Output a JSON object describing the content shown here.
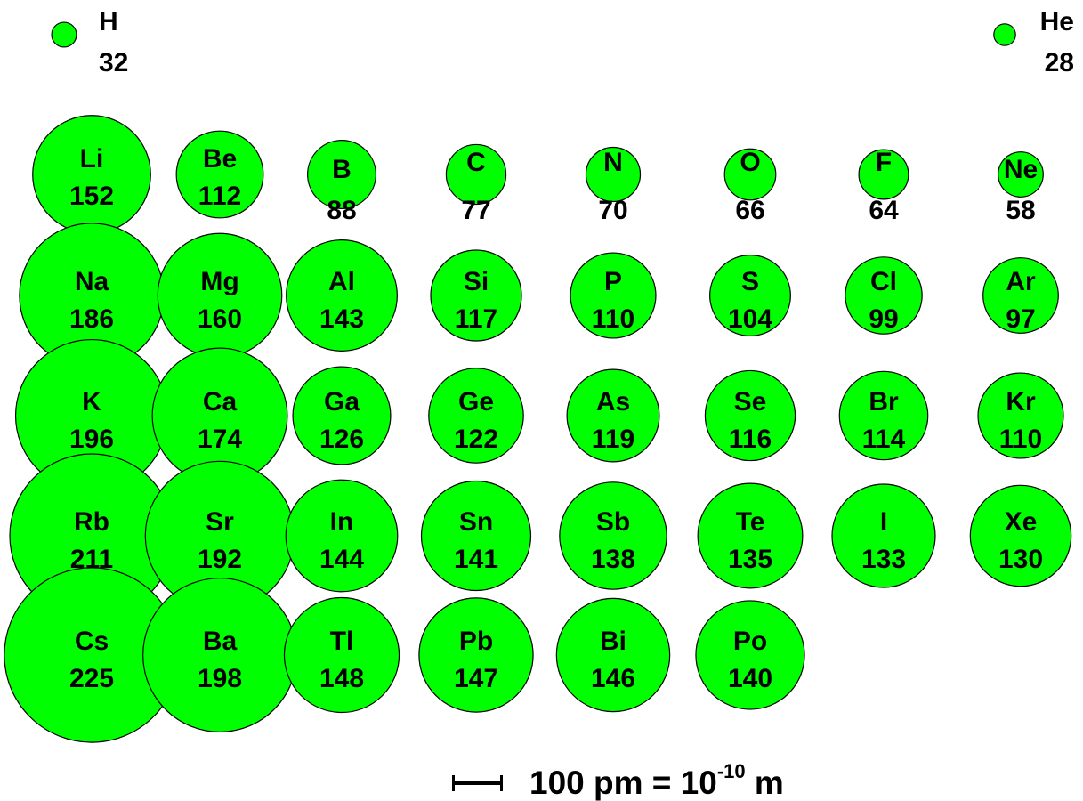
{
  "style": {
    "circle_fill": "#00ff00",
    "circle_stroke": "#000000",
    "text_color": "#000000"
  },
  "elements": [
    {
      "symbol": "H",
      "radius_pm": 32,
      "row": 1,
      "group": 1
    },
    {
      "symbol": "He",
      "radius_pm": 28,
      "row": 1,
      "group": 18
    },
    {
      "symbol": "Li",
      "radius_pm": 152,
      "row": 2,
      "group": 1
    },
    {
      "symbol": "Be",
      "radius_pm": 112,
      "row": 2,
      "group": 2
    },
    {
      "symbol": "B",
      "radius_pm": 88,
      "row": 2,
      "group": 13
    },
    {
      "symbol": "C",
      "radius_pm": 77,
      "row": 2,
      "group": 14
    },
    {
      "symbol": "N",
      "radius_pm": 70,
      "row": 2,
      "group": 15
    },
    {
      "symbol": "O",
      "radius_pm": 66,
      "row": 2,
      "group": 16
    },
    {
      "symbol": "F",
      "radius_pm": 64,
      "row": 2,
      "group": 17
    },
    {
      "symbol": "Ne",
      "radius_pm": 58,
      "row": 2,
      "group": 18
    },
    {
      "symbol": "Na",
      "radius_pm": 186,
      "row": 3,
      "group": 1
    },
    {
      "symbol": "Mg",
      "radius_pm": 160,
      "row": 3,
      "group": 2
    },
    {
      "symbol": "Al",
      "radius_pm": 143,
      "row": 3,
      "group": 13
    },
    {
      "symbol": "Si",
      "radius_pm": 117,
      "row": 3,
      "group": 14
    },
    {
      "symbol": "P",
      "radius_pm": 110,
      "row": 3,
      "group": 15
    },
    {
      "symbol": "S",
      "radius_pm": 104,
      "row": 3,
      "group": 16
    },
    {
      "symbol": "Cl",
      "radius_pm": 99,
      "row": 3,
      "group": 17
    },
    {
      "symbol": "Ar",
      "radius_pm": 97,
      "row": 3,
      "group": 18
    },
    {
      "symbol": "K",
      "radius_pm": 196,
      "row": 4,
      "group": 1
    },
    {
      "symbol": "Ca",
      "radius_pm": 174,
      "row": 4,
      "group": 2
    },
    {
      "symbol": "Ga",
      "radius_pm": 126,
      "row": 4,
      "group": 13
    },
    {
      "symbol": "Ge",
      "radius_pm": 122,
      "row": 4,
      "group": 14
    },
    {
      "symbol": "As",
      "radius_pm": 119,
      "row": 4,
      "group": 15
    },
    {
      "symbol": "Se",
      "radius_pm": 116,
      "row": 4,
      "group": 16
    },
    {
      "symbol": "Br",
      "radius_pm": 114,
      "row": 4,
      "group": 17
    },
    {
      "symbol": "Kr",
      "radius_pm": 110,
      "row": 4,
      "group": 18
    },
    {
      "symbol": "Rb",
      "radius_pm": 211,
      "row": 5,
      "group": 1
    },
    {
      "symbol": "Sr",
      "radius_pm": 192,
      "row": 5,
      "group": 2
    },
    {
      "symbol": "In",
      "radius_pm": 144,
      "row": 5,
      "group": 13
    },
    {
      "symbol": "Sn",
      "radius_pm": 141,
      "row": 5,
      "group": 14
    },
    {
      "symbol": "Sb",
      "radius_pm": 138,
      "row": 5,
      "group": 15
    },
    {
      "symbol": "Te",
      "radius_pm": 135,
      "row": 5,
      "group": 16
    },
    {
      "symbol": "I",
      "radius_pm": 133,
      "row": 5,
      "group": 17
    },
    {
      "symbol": "Xe",
      "radius_pm": 130,
      "row": 5,
      "group": 18
    },
    {
      "symbol": "Cs",
      "radius_pm": 225,
      "row": 6,
      "group": 1
    },
    {
      "symbol": "Ba",
      "radius_pm": 198,
      "row": 6,
      "group": 2
    },
    {
      "symbol": "Tl",
      "radius_pm": 148,
      "row": 6,
      "group": 13
    },
    {
      "symbol": "Pb",
      "radius_pm": 147,
      "row": 6,
      "group": 14
    },
    {
      "symbol": "Bi",
      "radius_pm": 146,
      "row": 6,
      "group": 15
    },
    {
      "symbol": "Po",
      "radius_pm": 140,
      "row": 6,
      "group": 16
    }
  ],
  "scale_legend": {
    "text_main": "100 pm = 10",
    "text_exponent": "-10",
    "text_unit": " m"
  }
}
